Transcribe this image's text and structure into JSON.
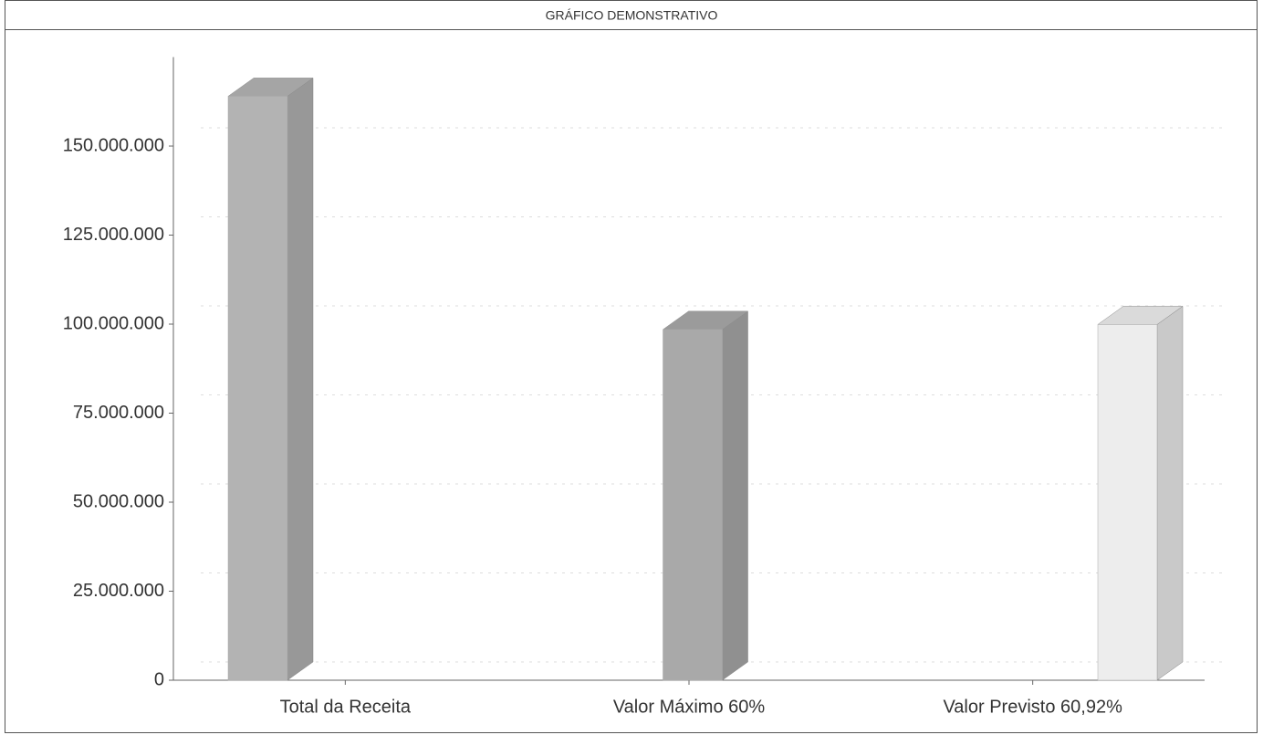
{
  "chart_data": {
    "type": "bar3d",
    "title": "GRÁFICO DEMONSTRATIVO",
    "categories": [
      "Total da Receita",
      "Valor Máximo 60%",
      "Valor Previsto 60,92%"
    ],
    "values": [
      164000000,
      98500000,
      99900000
    ],
    "colors": [
      "#b3b3b3",
      "#a9a9a9",
      "#ededed"
    ],
    "ylim": [
      0,
      175000000
    ],
    "yticks": [
      0,
      {
        "value": 25000000,
        "label": "25.000.000"
      },
      {
        "value": 50000000,
        "label": "50.000.000"
      },
      {
        "value": 75000000,
        "label": "75.000.000"
      },
      {
        "value": 100000000,
        "label": "100.000.000"
      },
      {
        "value": 125000000,
        "label": "125.000.000"
      },
      {
        "value": 150000000,
        "label": "150.000.000"
      }
    ],
    "grid": true
  }
}
